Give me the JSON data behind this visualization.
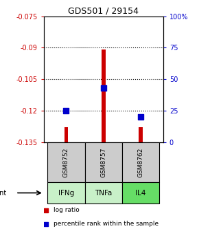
{
  "title": "GDS501 / 29154",
  "samples": [
    "GSM8752",
    "GSM8757",
    "GSM8762"
  ],
  "agents": [
    "IFNg",
    "TNFa",
    "IL4"
  ],
  "log_ratios": [
    -0.128,
    -0.091,
    -0.128
  ],
  "percentile_ranks": [
    25,
    43,
    20
  ],
  "ylim_left": [
    -0.135,
    -0.075
  ],
  "ylim_right": [
    0,
    100
  ],
  "yticks_left": [
    -0.135,
    -0.12,
    -0.105,
    -0.09,
    -0.075
  ],
  "yticks_right": [
    0,
    25,
    50,
    75,
    100
  ],
  "ytick_labels_right": [
    "0",
    "25",
    "50",
    "75",
    "100%"
  ],
  "bar_color": "#cc0000",
  "dot_color": "#0000cc",
  "agent_colors": [
    "#c8f0c8",
    "#c8f0c8",
    "#66dd66"
  ],
  "sample_bg_color": "#cccccc",
  "left_axis_color": "#cc0000",
  "right_axis_color": "#0000cc",
  "bar_width": 0.1,
  "dot_size": 40,
  "baseline": -0.135,
  "x_positions": [
    1,
    2,
    3
  ],
  "xlim": [
    0.4,
    3.6
  ]
}
